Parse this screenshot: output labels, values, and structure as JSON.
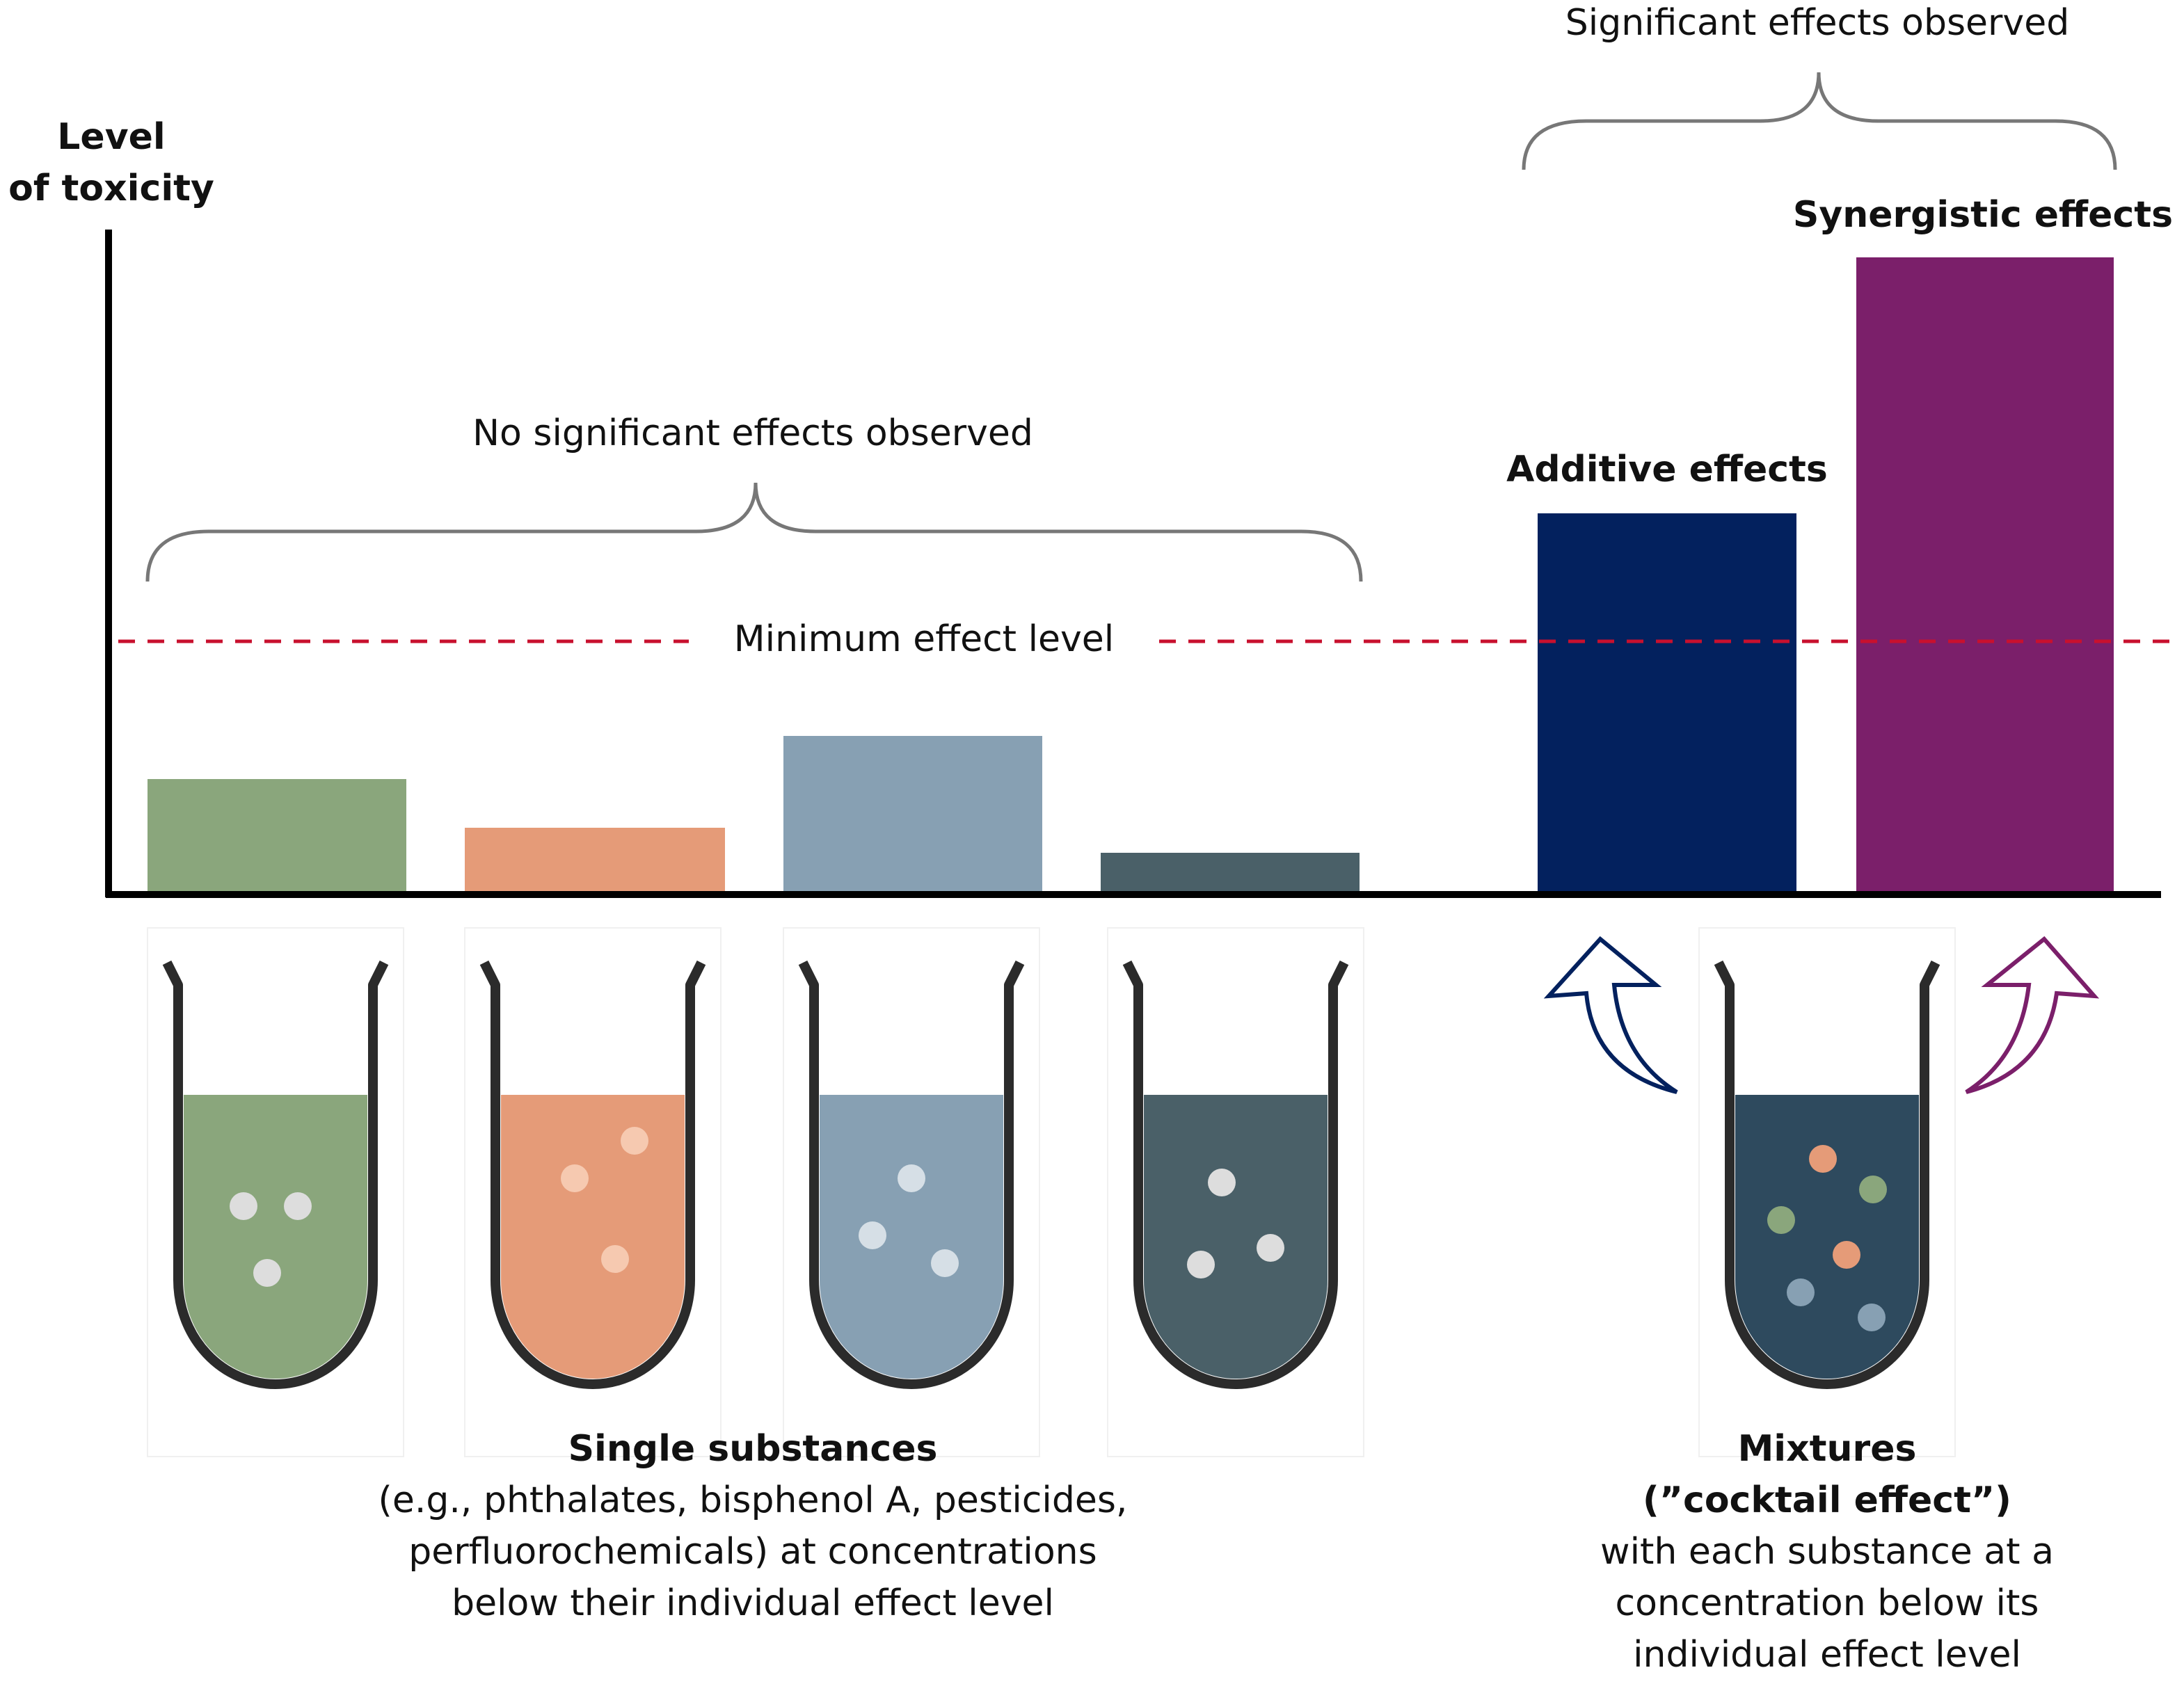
{
  "y_axis_label": [
    "Level",
    "of toxicity"
  ],
  "no_effect_label": "No significant effects observed",
  "minimum_label": "Minimum effect level",
  "significant_label": "Significant effects observed",
  "additive_label": "Additive effects",
  "synergistic_label": "Synergistic effects",
  "single": {
    "title": "Single substances",
    "lines": [
      "(e.g., phthalates, bisphenol A, pesticides,",
      "perfluorochemicals) at concentrations",
      "below their individual effect level"
    ]
  },
  "mixtures": {
    "title": "Mixtures",
    "subtitle": "(”cocktail effect”)",
    "lines": [
      "with each substance at a",
      "concentration below its",
      "individual effect level"
    ]
  }
}
